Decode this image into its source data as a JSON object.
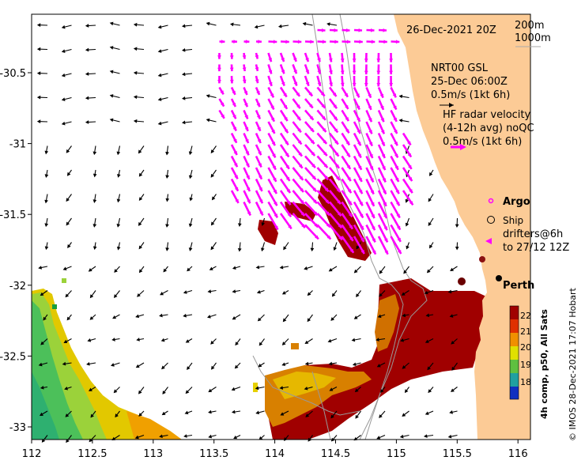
{
  "title": {
    "datetime": "26-Dec-2021 20Z"
  },
  "bathy_legend": {
    "line1": "200m",
    "line2": "1000m"
  },
  "model_legend": {
    "name": "NRT00 GSL",
    "time": "25-Dec 06:00Z",
    "scale": "0.5m/s (1kt 6h)"
  },
  "radar_legend": {
    "line1": "HF radar velocity",
    "line2": "(4-12h avg) noQC",
    "scale": "0.5m/s (1kt 6h)"
  },
  "symbols": {
    "argo": "Argo",
    "ship": "Ship",
    "drifters_line1": "drifters@6h",
    "drifters_line2": "to 27/12 12Z"
  },
  "places": {
    "perth": "Perth"
  },
  "colorbar": {
    "title": "4h comp, p50, All Sats",
    "ticks": [
      "22",
      "21",
      "20",
      "19",
      "18"
    ],
    "range": [
      17.5,
      22.5
    ]
  },
  "credit": "© IMOS 28-Dec-2021 17:07 Hobart",
  "axes": {
    "x_ticks": [
      "112",
      "112.5",
      "113",
      "113.5",
      "114",
      "114.5",
      "115",
      "115.5",
      "116"
    ],
    "y_ticks": [
      "-30.5",
      "-31",
      "-31.5",
      "-32",
      "-32.5",
      "-33"
    ]
  },
  "colors": {
    "land": "#FCCB96",
    "hf_radar_arrow": "#FF00FF",
    "model_arrow": "#000000",
    "sst_hot": "#A00000"
  }
}
